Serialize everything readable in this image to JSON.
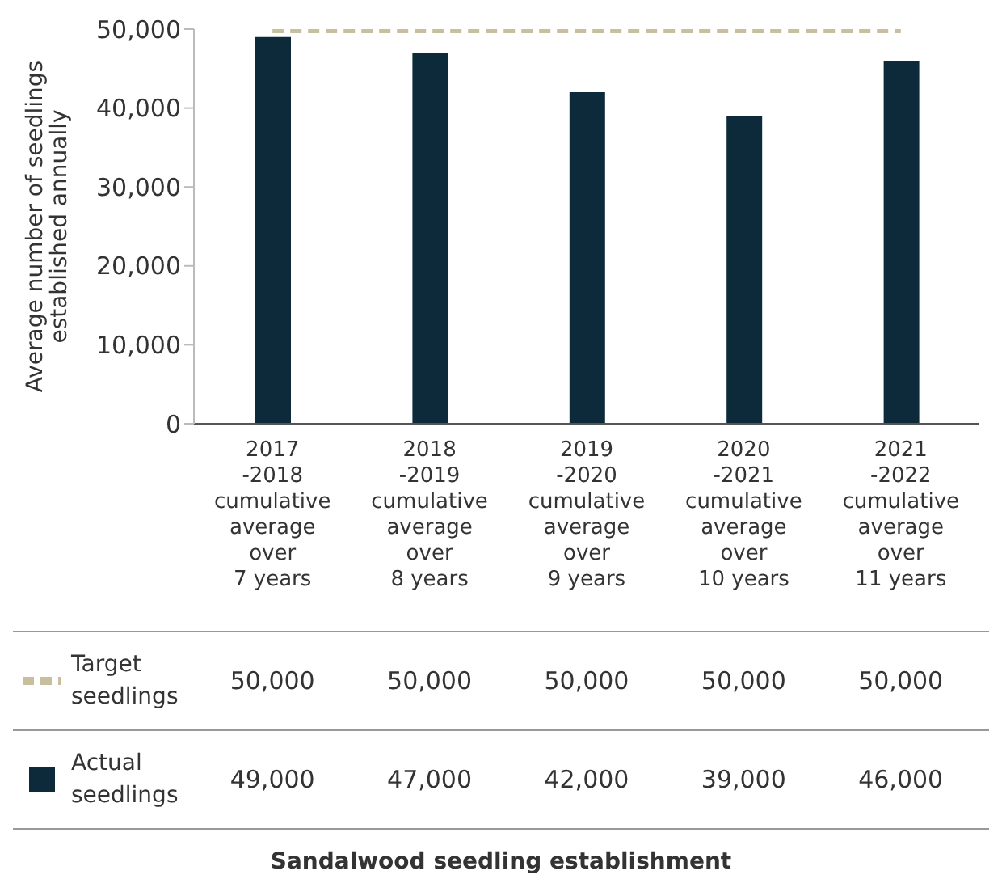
{
  "chart_data": {
    "type": "bar",
    "title": "Sandalwood seedling establishment",
    "ylabel": "Average number of seedlings\nestablished annually",
    "categories": [
      "2017\n-2018\ncumulative\naverage\nover\n7 years",
      "2018\n-2019\ncumulative\naverage\nover\n8 years",
      "2019\n-2020\ncumulative\naverage\nover\n9 years",
      "2020\n-2021\ncumulative\naverage\nover\n10 years",
      "2021\n-2022\ncumulative\naverage\nover\n11 years"
    ],
    "series": [
      {
        "name": "Target\nseedlings",
        "type": "line",
        "line_style": "dashed",
        "color": "#c9bf9f",
        "values": [
          50000,
          50000,
          50000,
          50000,
          50000
        ],
        "value_labels": [
          "50,000",
          "50,000",
          "50,000",
          "50,000",
          "50,000"
        ]
      },
      {
        "name": "Actual\nseedlings",
        "color": "#0c2a39",
        "values": [
          49000,
          47000,
          42000,
          39000,
          46000
        ],
        "value_labels": [
          "49,000",
          "47,000",
          "42,000",
          "39,000",
          "46,000"
        ]
      }
    ],
    "ylim": [
      0,
      50000
    ],
    "yticks": [
      {
        "value": 0,
        "label": "0"
      },
      {
        "value": 10000,
        "label": "10,000"
      },
      {
        "value": 20000,
        "label": "20,000"
      },
      {
        "value": 30000,
        "label": "30,000"
      },
      {
        "value": 40000,
        "label": "40,000"
      },
      {
        "value": 50000,
        "label": "50,000"
      }
    ],
    "legend": "bottom"
  }
}
